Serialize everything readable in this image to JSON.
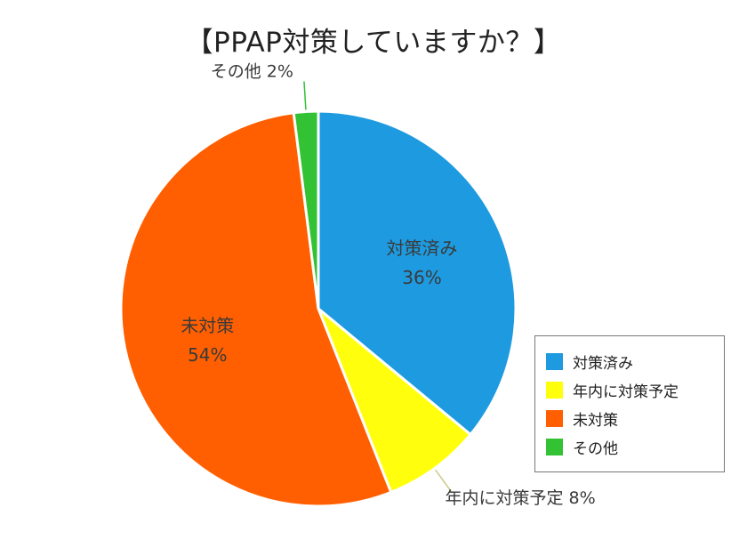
{
  "chart_data": {
    "type": "pie",
    "title": "【PPAP対策していますか？】",
    "slices": [
      {
        "label": "対策済み",
        "value": 36,
        "value_label": "36%",
        "color": "#1e9be0",
        "label_style": "inside"
      },
      {
        "label": "年内に対策予定",
        "value": 8,
        "value_label": "8%",
        "color": "#ffff0d",
        "label_style": "outside"
      },
      {
        "label": "未対策",
        "value": 54,
        "value_label": "54%",
        "color": "#ff5f00",
        "label_style": "inside"
      },
      {
        "label": "その他",
        "value": 2,
        "value_label": "2%",
        "color": "#33c233",
        "label_style": "outside"
      }
    ],
    "legend": {
      "position": "right"
    }
  }
}
